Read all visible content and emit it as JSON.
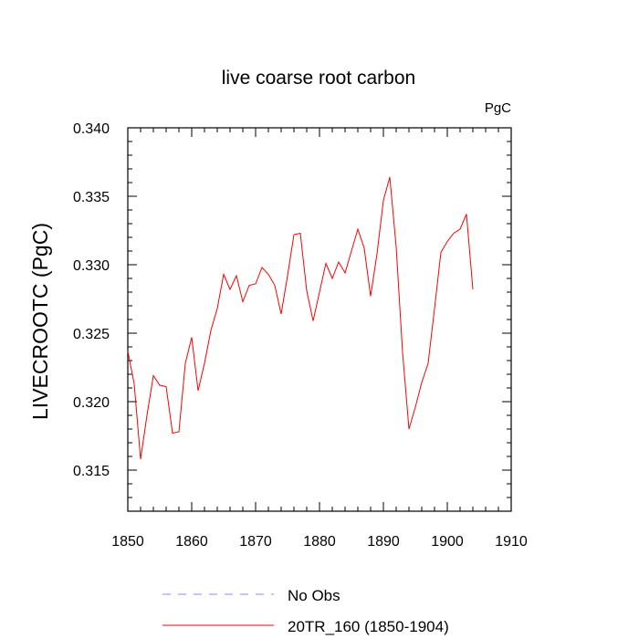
{
  "chart_data": {
    "type": "line",
    "title": "live coarse root carbon",
    "units_label": "PgC",
    "ylabel": "LIVECROOTC  (PgC)",
    "xlabel": "",
    "xlim": [
      1850,
      1910
    ],
    "ylim": [
      0.312,
      0.34
    ],
    "x_ticks": [
      1850,
      1860,
      1870,
      1880,
      1890,
      1900,
      1910
    ],
    "y_ticks": [
      0.315,
      0.32,
      0.325,
      0.33,
      0.335,
      0.34
    ],
    "x_minor_step": 2,
    "y_minor_step": 0.001,
    "grid": false,
    "legend": {
      "position": "bottom"
    },
    "series": [
      {
        "name": "No Obs",
        "color": "#8a8aff",
        "style": "dashed",
        "x": [],
        "values": []
      },
      {
        "name": "20TR_160 (1850-1904)",
        "color": "#ff0000",
        "style": "solid",
        "x": [
          1850,
          1851,
          1852,
          1853,
          1854,
          1855,
          1856,
          1857,
          1858,
          1859,
          1860,
          1861,
          1862,
          1863,
          1864,
          1865,
          1866,
          1867,
          1868,
          1869,
          1870,
          1871,
          1872,
          1873,
          1874,
          1875,
          1876,
          1877,
          1878,
          1879,
          1880,
          1881,
          1882,
          1883,
          1884,
          1885,
          1886,
          1887,
          1888,
          1889,
          1890,
          1891,
          1892,
          1893,
          1894,
          1895,
          1896,
          1897,
          1898,
          1899,
          1900,
          1901,
          1902,
          1903,
          1904
        ],
        "values": [
          0.3237,
          0.3213,
          0.3158,
          0.319,
          0.3219,
          0.3212,
          0.3211,
          0.3177,
          0.3178,
          0.3228,
          0.3247,
          0.3208,
          0.3228,
          0.3252,
          0.3268,
          0.3293,
          0.3282,
          0.3292,
          0.3273,
          0.3285,
          0.3286,
          0.3298,
          0.3293,
          0.3285,
          0.3264,
          0.3292,
          0.3322,
          0.3323,
          0.3281,
          0.3259,
          0.328,
          0.3301,
          0.329,
          0.3302,
          0.3294,
          0.331,
          0.3326,
          0.3312,
          0.3277,
          0.3308,
          0.3347,
          0.3364,
          0.3313,
          0.3236,
          0.318,
          0.3196,
          0.3214,
          0.3228,
          0.3268,
          0.3309,
          0.3317,
          0.3323,
          0.3326,
          0.3337,
          0.3282
        ]
      }
    ]
  }
}
